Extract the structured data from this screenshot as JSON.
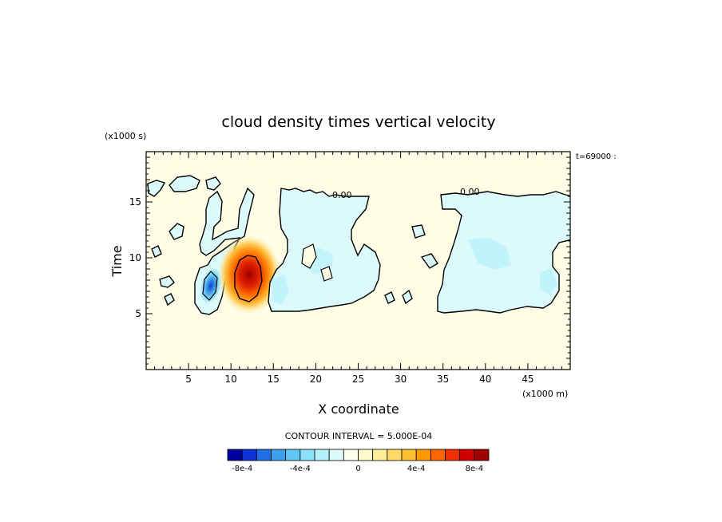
{
  "chart_data": {
    "type": "heatmap",
    "title": "cloud density times vertical velocity",
    "xlabel": "X coordinate",
    "ylabel": "Time",
    "x_scale_label": "(x1000 m)",
    "y_scale_label": "(x1000 s)",
    "time_label": "t=69000 :",
    "xlim": [
      0,
      50
    ],
    "ylim": [
      0,
      19.5
    ],
    "x_ticks": [
      5,
      10,
      15,
      20,
      25,
      30,
      35,
      40,
      45
    ],
    "x_tick_labels": [
      "5",
      "10",
      "15",
      "20",
      "25",
      "30",
      "35",
      "40",
      "45"
    ],
    "y_ticks": [
      5,
      10,
      15
    ],
    "y_tick_labels": [
      "5",
      "10",
      "15"
    ],
    "contour_interval": "CONTOUR INTERVAL = 5.000E-04",
    "contour_labels": [
      {
        "text": "0.00",
        "x": 22.8,
        "y": 15.9
      },
      {
        "text": "0.00",
        "x": 38.5,
        "y": 16.0
      }
    ],
    "background_color": "#fffde6",
    "colorbar": {
      "colors": [
        "#0000a0",
        "#0d30d8",
        "#1e6ee6",
        "#3ca0ee",
        "#5fc8f5",
        "#8ce0f8",
        "#b4f0fa",
        "#dcfafc",
        "#fffff0",
        "#fffacc",
        "#ffee99",
        "#ffd966",
        "#ffbf33",
        "#ff9900",
        "#ff6600",
        "#f03000",
        "#d00000",
        "#a00000"
      ],
      "tick_labels": [
        "-8e-4",
        "-4e-4",
        "0",
        "4e-4",
        "8e-4"
      ],
      "tick_values": [
        -0.0008,
        -0.0004,
        0,
        0.0004,
        0.0008
      ]
    },
    "features": [
      {
        "name": "strong updraft core",
        "x": 12,
        "y": 8.3,
        "value": 0.0009
      },
      {
        "name": "downdraft core",
        "x": 7,
        "y": 7.5,
        "value": -0.0007
      },
      {
        "name": "negative region center",
        "x": 20,
        "y": 11,
        "value": -0.0001
      },
      {
        "name": "negative region right",
        "x": 42,
        "y": 11,
        "value": -0.0001
      }
    ]
  }
}
